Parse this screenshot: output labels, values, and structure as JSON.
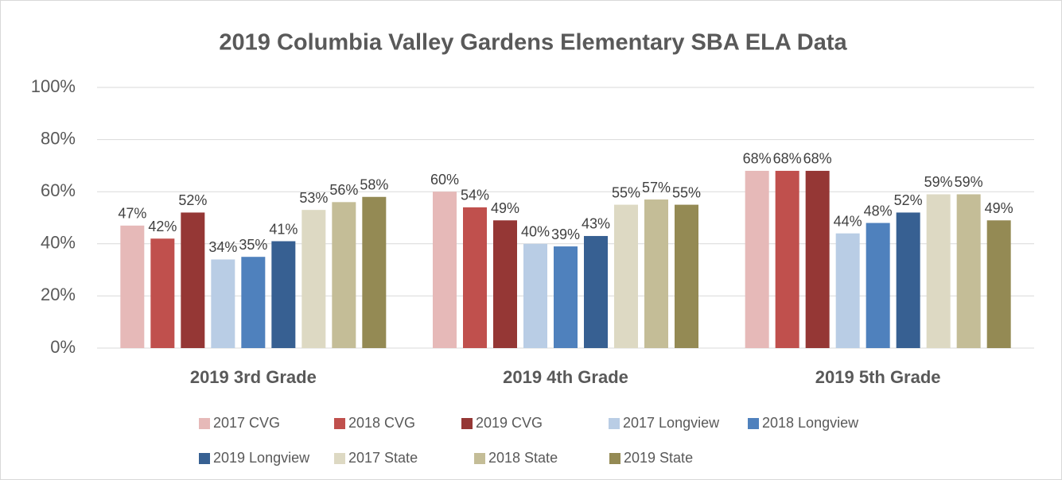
{
  "chart_data": {
    "type": "bar",
    "title": "2019 Columbia Valley Gardens Elementary SBA ELA Data",
    "categories": [
      "2019 3rd Grade",
      "2019 4th Grade",
      "2019 5th Grade"
    ],
    "series": [
      {
        "name": "2017 CVG",
        "color": "#e6b9b8",
        "values": [
          47,
          60,
          68
        ],
        "value_labels": [
          "47%",
          "60%",
          "68%"
        ]
      },
      {
        "name": "2018 CVG",
        "color": "#c0504d",
        "values": [
          42,
          54,
          68
        ],
        "value_labels": [
          "42%",
          "54%",
          "68%"
        ]
      },
      {
        "name": "2019 CVG",
        "color": "#953735",
        "values": [
          52,
          49,
          68
        ],
        "value_labels": [
          "52%",
          "49%",
          "68%"
        ]
      },
      {
        "name": "2017 Longview",
        "color": "#b9cde5",
        "values": [
          34,
          40,
          44
        ],
        "value_labels": [
          "34%",
          "40%",
          "44%"
        ]
      },
      {
        "name": "2018 Longview",
        "color": "#4f81bd",
        "values": [
          35,
          39,
          48
        ],
        "value_labels": [
          "35%",
          "39%",
          "48%"
        ]
      },
      {
        "name": "2019 Longview",
        "color": "#376092",
        "values": [
          41,
          43,
          52
        ],
        "value_labels": [
          "41%",
          "43%",
          "52%"
        ]
      },
      {
        "name": "2017 State",
        "color": "#ddd9c3",
        "values": [
          53,
          55,
          59
        ],
        "value_labels": [
          "53%",
          "55%",
          "59%"
        ]
      },
      {
        "name": "2018 State",
        "color": "#c4bd97",
        "values": [
          56,
          57,
          59
        ],
        "value_labels": [
          "56%",
          "57%",
          "59%"
        ]
      },
      {
        "name": "2019 State",
        "color": "#948a54",
        "values": [
          58,
          55,
          49
        ],
        "value_labels": [
          "58%",
          "55%",
          "49%"
        ]
      }
    ],
    "ylim": [
      0,
      100
    ],
    "yticks": [
      {
        "value": 0,
        "label": "0%"
      },
      {
        "value": 20,
        "label": "20%"
      },
      {
        "value": 40,
        "label": "40%"
      },
      {
        "value": 60,
        "label": "60%"
      },
      {
        "value": 80,
        "label": "80%"
      },
      {
        "value": 100,
        "label": "100%"
      }
    ],
    "grid": true,
    "legend": "bottom"
  }
}
